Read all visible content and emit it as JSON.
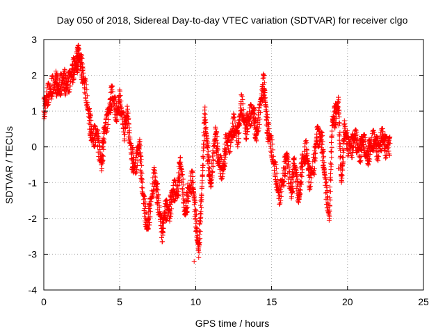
{
  "chart_data": {
    "type": "scatter",
    "title": "Day 050 of 2018, Sidereal Day-to-day VTEC variation (SDTVAR) for receiver clgo",
    "xlabel": "GPS time / hours",
    "ylabel": "SDTVAR / TECUs",
    "xlim": [
      0,
      25
    ],
    "ylim": [
      -4,
      3
    ],
    "xticks": [
      "0",
      "5",
      "10",
      "15",
      "20",
      "25"
    ],
    "yticks": [
      "-4",
      "-3",
      "-2",
      "-1",
      "0",
      "1",
      "2",
      "3"
    ],
    "grid": true,
    "marker": "plus",
    "series": [
      {
        "name": "SDTVAR",
        "color": "#ff0000",
        "x": [
          0.0,
          0.2,
          0.5,
          0.8,
          1.0,
          1.3,
          1.5,
          1.8,
          2.0,
          2.2,
          2.3,
          2.5,
          2.7,
          3.0,
          3.2,
          3.5,
          3.8,
          4.0,
          4.3,
          4.5,
          4.8,
          5.0,
          5.3,
          5.5,
          5.8,
          6.0,
          6.3,
          6.5,
          6.8,
          7.0,
          7.3,
          7.5,
          7.8,
          8.0,
          8.3,
          8.5,
          8.8,
          9.0,
          9.3,
          9.5,
          9.8,
          10.0,
          10.2,
          10.4,
          10.6,
          10.8,
          11.0,
          11.3,
          11.5,
          11.8,
          12.0,
          12.3,
          12.5,
          12.8,
          13.0,
          13.3,
          13.5,
          13.8,
          14.0,
          14.3,
          14.5,
          14.7,
          14.9,
          15.2,
          15.5,
          15.8,
          16.0,
          16.3,
          16.5,
          16.8,
          17.0,
          17.3,
          17.5,
          17.8,
          18.0,
          18.3,
          18.5,
          18.8,
          19.0,
          19.2,
          19.4,
          19.6,
          19.8,
          20.0,
          20.3,
          20.5,
          20.8,
          21.0,
          21.3,
          21.5,
          21.8,
          22.0,
          22.3,
          22.5,
          22.8
        ],
        "y": [
          1.0,
          1.4,
          1.6,
          1.8,
          1.6,
          1.9,
          1.7,
          2.0,
          2.2,
          2.4,
          2.6,
          2.2,
          1.7,
          0.8,
          0.2,
          0.4,
          -0.5,
          0.5,
          1.0,
          1.5,
          0.9,
          1.3,
          0.5,
          0.9,
          -0.3,
          -0.6,
          0.1,
          -1.2,
          -2.3,
          -1.7,
          -0.8,
          -1.4,
          -2.4,
          -1.7,
          -1.8,
          -1.2,
          -1.3,
          -0.4,
          -1.9,
          -1.3,
          -0.9,
          -2.0,
          -2.9,
          -1.3,
          0.9,
          -0.2,
          -1.1,
          0.4,
          -0.4,
          -0.7,
          0.1,
          0.2,
          0.6,
          0.3,
          1.2,
          0.5,
          0.8,
          1.0,
          0.3,
          1.3,
          1.8,
          0.6,
          0.2,
          -0.6,
          -1.4,
          -0.8,
          -0.2,
          -1.3,
          -0.4,
          -1.5,
          -0.5,
          -0.1,
          -0.9,
          -0.5,
          0.4,
          0.2,
          -0.8,
          -2.0,
          0.7,
          0.9,
          1.2,
          -1.0,
          0.5,
          0.1,
          0.0,
          0.3,
          -0.2,
          0.2,
          -0.3,
          0.0,
          0.2,
          -0.1,
          0.3,
          0.0,
          0.1
        ]
      }
    ],
    "outliers": [
      {
        "x": 9.9,
        "y": -3.2
      },
      {
        "x": 19.4,
        "y": -0.6
      }
    ]
  }
}
